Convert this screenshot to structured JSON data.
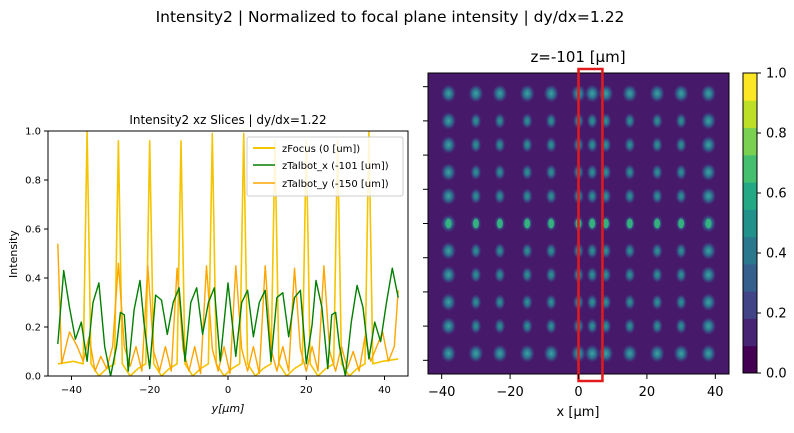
{
  "figure": {
    "suptitle": "Intensity2 | Normalized to focal plane intensity | dy/dx=1.22"
  },
  "chart_data": [
    {
      "type": "line",
      "title": "Intensity2 xz Slices | dy/dx=1.22",
      "xlabel": "y[μm]",
      "ylabel": "Intensity",
      "xlim": [
        -46,
        46
      ],
      "ylim": [
        0,
        1.0
      ],
      "xticks": [
        "−40",
        "−20",
        "0",
        "20",
        "40"
      ],
      "yticks": [
        "0.0",
        "0.2",
        "0.4",
        "0.6",
        "0.8",
        "1.0"
      ],
      "legend_position": "top-right",
      "series": [
        {
          "name": "zFocus (0 [um])",
          "color": "#f5c400",
          "x": [
            -43.5,
            -39.5,
            -37.0,
            -36.0,
            -35.0,
            -33.0,
            -31.0,
            -29.0,
            -28.0,
            -27.0,
            -25.0,
            -23.0,
            -21.0,
            -20.0,
            -19.0,
            -17.0,
            -15.0,
            -13.0,
            -12.0,
            -11.0,
            -9.0,
            -7.0,
            -5.0,
            -4.0,
            -3.0,
            -1.0,
            1.0,
            3.0,
            4.0,
            5.0,
            7.0,
            9.0,
            11.0,
            12.0,
            13.0,
            15.0,
            17.0,
            19.0,
            20.0,
            21.0,
            23.0,
            25.0,
            27.0,
            28.0,
            29.0,
            31.0,
            33.0,
            35.0,
            36.0,
            37.0,
            39.5,
            43.5
          ],
          "y": [
            0.05,
            0.06,
            0.05,
            1.0,
            0.05,
            0.0,
            0.03,
            0.05,
            0.96,
            0.05,
            0.0,
            0.03,
            0.05,
            0.96,
            0.05,
            0.0,
            0.03,
            0.05,
            0.96,
            0.05,
            0.0,
            0.03,
            0.05,
            0.99,
            0.05,
            0.0,
            0.03,
            0.05,
            0.99,
            0.05,
            0.0,
            0.03,
            0.05,
            0.96,
            0.05,
            0.0,
            0.03,
            0.05,
            0.96,
            0.05,
            0.0,
            0.03,
            0.05,
            0.96,
            0.05,
            0.0,
            0.03,
            0.05,
            1.0,
            0.05,
            0.06,
            0.07
          ]
        },
        {
          "name": "zTalbot_x (-101 [um])",
          "color": "#008000",
          "x": [
            -43.5,
            -42.0,
            -40.5,
            -39.0,
            -37.5,
            -36.0,
            -34.5,
            -33.0,
            -31.5,
            -30.0,
            -28.5,
            -27.5,
            -26.5,
            -25.5,
            -24.0,
            -22.5,
            -21.5,
            -20.0,
            -18.5,
            -17.0,
            -15.5,
            -14.0,
            -12.5,
            -11.0,
            -9.5,
            -8.0,
            -6.5,
            -5.0,
            -3.5,
            -2.0,
            0.0,
            2.0,
            3.5,
            5.0,
            6.5,
            8.0,
            9.5,
            11.0,
            12.5,
            14.0,
            15.5,
            17.0,
            18.5,
            20.0,
            21.5,
            22.5,
            24.0,
            25.5,
            26.5,
            27.5,
            28.5,
            30.0,
            31.5,
            33.0,
            34.5,
            36.0,
            37.5,
            39.0,
            40.5,
            42.0,
            43.5
          ],
          "y": [
            0.13,
            0.43,
            0.28,
            0.15,
            0.22,
            0.06,
            0.3,
            0.38,
            0.12,
            0.0,
            0.12,
            0.26,
            0.25,
            0.02,
            0.27,
            0.39,
            0.22,
            0.03,
            0.33,
            0.31,
            0.17,
            0.3,
            0.36,
            0.06,
            0.3,
            0.36,
            0.17,
            0.3,
            0.36,
            0.06,
            0.38,
            0.08,
            0.3,
            0.35,
            0.16,
            0.3,
            0.35,
            0.06,
            0.32,
            0.34,
            0.16,
            0.32,
            0.35,
            0.05,
            0.21,
            0.39,
            0.28,
            0.03,
            0.25,
            0.26,
            0.12,
            0.0,
            0.22,
            0.37,
            0.28,
            0.07,
            0.22,
            0.14,
            0.3,
            0.44,
            0.32
          ]
        },
        {
          "name": "zTalbot_y (-150 [um])",
          "color": "#ffa500",
          "x": [
            -43.5,
            -42.5,
            -40.5,
            -38.5,
            -37.0,
            -35.5,
            -34.0,
            -32.5,
            -31.0,
            -29.5,
            -28.0,
            -26.5,
            -25.0,
            -23.5,
            -22.0,
            -20.5,
            -19.0,
            -17.5,
            -16.0,
            -14.5,
            -13.0,
            -11.5,
            -10.0,
            -8.5,
            -7.0,
            -5.5,
            -4.0,
            -2.5,
            -1.0,
            0.5,
            2.0,
            3.5,
            5.0,
            6.5,
            8.0,
            9.5,
            11.0,
            12.5,
            14.0,
            15.5,
            17.0,
            18.5,
            20.0,
            21.5,
            23.0,
            24.5,
            26.0,
            27.5,
            29.0,
            30.5,
            32.0,
            33.5,
            35.0,
            36.5,
            38.0,
            39.5,
            41.0,
            42.5,
            43.5
          ],
          "y": [
            0.54,
            0.05,
            0.18,
            0.12,
            0.06,
            0.16,
            0.02,
            0.08,
            0.03,
            0.12,
            0.46,
            0.12,
            0.04,
            0.12,
            0.02,
            0.45,
            0.1,
            0.02,
            0.12,
            0.02,
            0.44,
            0.11,
            0.02,
            0.12,
            0.01,
            0.45,
            0.11,
            0.02,
            0.12,
            0.01,
            0.45,
            0.11,
            0.02,
            0.12,
            0.01,
            0.45,
            0.11,
            0.02,
            0.12,
            0.02,
            0.44,
            0.11,
            0.02,
            0.12,
            0.02,
            0.45,
            0.1,
            0.02,
            0.12,
            0.03,
            0.1,
            0.02,
            0.16,
            0.06,
            0.12,
            0.18,
            0.06,
            0.12,
            0.35
          ]
        }
      ]
    },
    {
      "type": "heatmap",
      "title": "z=-101 [μm]",
      "xlabel": "x [μm]",
      "xlim": [
        -44,
        44
      ],
      "ylim": [
        -44,
        44
      ],
      "xticks": [
        "−40",
        "−20",
        "0",
        "20",
        "40"
      ],
      "colorbar": {
        "ticks": [
          "0.0",
          "0.2",
          "0.4",
          "0.6",
          "0.8",
          "1.0"
        ],
        "levels": [
          "#440154",
          "#482475",
          "#414487",
          "#355f8d",
          "#2a788e",
          "#21918c",
          "#22a884",
          "#44bf70",
          "#7ad151",
          "#bddf26",
          "#fde725"
        ]
      },
      "spot_columns_x": [
        -38,
        -30,
        -23,
        -15,
        -8,
        0,
        4,
        8,
        15,
        23,
        30,
        38
      ],
      "spot_rows_y": [
        38,
        30,
        23,
        15,
        8,
        0,
        -8,
        -15,
        -23,
        -30,
        -38
      ],
      "highlight": {
        "x0": 0,
        "x1": 7,
        "color": "#e31a1c"
      }
    }
  ]
}
